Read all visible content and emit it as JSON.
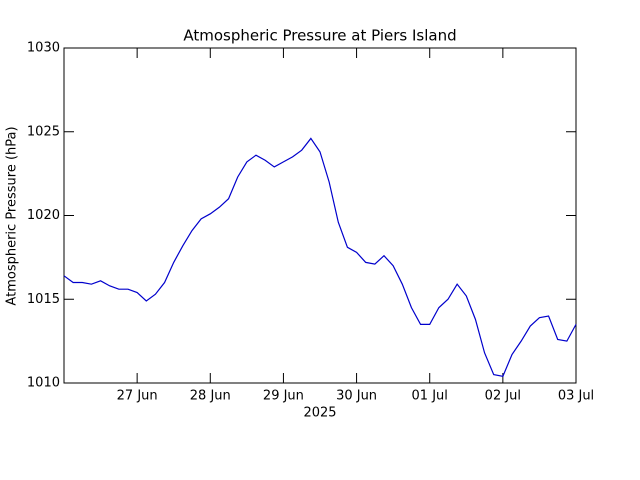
{
  "chart_data": {
    "type": "line",
    "title": "Atmospheric Pressure at Piers Island",
    "ylabel": "Atmospheric Pressure (hPa)",
    "xlabel": "2025",
    "x": [
      "2025-06-26T00:00",
      "2025-06-26T03:00",
      "2025-06-26T06:00",
      "2025-06-26T09:00",
      "2025-06-26T12:00",
      "2025-06-26T15:00",
      "2025-06-26T18:00",
      "2025-06-26T21:00",
      "2025-06-27T00:00",
      "2025-06-27T03:00",
      "2025-06-27T06:00",
      "2025-06-27T09:00",
      "2025-06-27T12:00",
      "2025-06-27T15:00",
      "2025-06-27T18:00",
      "2025-06-27T21:00",
      "2025-06-28T00:00",
      "2025-06-28T03:00",
      "2025-06-28T06:00",
      "2025-06-28T09:00",
      "2025-06-28T12:00",
      "2025-06-28T15:00",
      "2025-06-28T18:00",
      "2025-06-28T21:00",
      "2025-06-29T00:00",
      "2025-06-29T03:00",
      "2025-06-29T06:00",
      "2025-06-29T09:00",
      "2025-06-29T12:00",
      "2025-06-29T15:00",
      "2025-06-29T18:00",
      "2025-06-29T21:00",
      "2025-06-30T00:00",
      "2025-06-30T03:00",
      "2025-06-30T06:00",
      "2025-06-30T09:00",
      "2025-06-30T12:00",
      "2025-06-30T15:00",
      "2025-06-30T18:00",
      "2025-06-30T21:00",
      "2025-07-01T00:00",
      "2025-07-01T03:00",
      "2025-07-01T06:00",
      "2025-07-01T09:00",
      "2025-07-01T12:00",
      "2025-07-01T15:00",
      "2025-07-01T18:00",
      "2025-07-01T21:00",
      "2025-07-02T00:00",
      "2025-07-02T03:00",
      "2025-07-02T06:00",
      "2025-07-02T09:00",
      "2025-07-02T12:00",
      "2025-07-02T15:00",
      "2025-07-02T18:00",
      "2025-07-02T21:00",
      "2025-07-03T00:00"
    ],
    "series": [
      {
        "name": "Atmospheric Pressure",
        "color": "#0000cc",
        "values": [
          1016.4,
          1016.0,
          1016.0,
          1015.9,
          1016.1,
          1015.8,
          1015.6,
          1015.6,
          1015.4,
          1014.9,
          1015.3,
          1016.0,
          1017.2,
          1018.2,
          1019.1,
          1019.8,
          1020.1,
          1020.5,
          1021.0,
          1022.3,
          1023.2,
          1023.6,
          1023.3,
          1022.9,
          1023.2,
          1023.5,
          1023.9,
          1024.6,
          1023.8,
          1022.0,
          1019.6,
          1018.1,
          1017.8,
          1017.2,
          1017.1,
          1017.6,
          1017.0,
          1015.9,
          1014.5,
          1013.5,
          1013.5,
          1014.5,
          1015.0,
          1015.9,
          1015.2,
          1013.8,
          1011.8,
          1010.5,
          1010.4,
          1011.7,
          1012.5,
          1013.4,
          1013.9,
          1014.0,
          1012.6,
          1012.5,
          1013.5
        ]
      }
    ],
    "xlim": [
      "2025-06-26T00:00",
      "2025-07-03T00:00"
    ],
    "xticks": [
      {
        "value": "2025-06-27T00:00",
        "label": "27 Jun"
      },
      {
        "value": "2025-06-28T00:00",
        "label": "28 Jun"
      },
      {
        "value": "2025-06-29T00:00",
        "label": "29 Jun"
      },
      {
        "value": "2025-06-30T00:00",
        "label": "30 Jun"
      },
      {
        "value": "2025-07-01T00:00",
        "label": "01 Jul"
      },
      {
        "value": "2025-07-02T00:00",
        "label": "02 Jul"
      },
      {
        "value": "2025-07-03T00:00",
        "label": "03 Jul"
      }
    ],
    "ylim": [
      1010,
      1030
    ],
    "yticks": [
      1010,
      1015,
      1020,
      1025,
      1030
    ],
    "grid": false
  }
}
